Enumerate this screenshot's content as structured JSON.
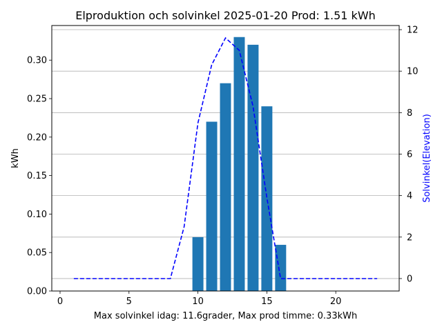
{
  "chart_data": {
    "type": "bar",
    "title": "Elproduktion och solvinkel 2025-01-20 Prod: 1.51 kWh",
    "xlabel": "Max solvinkel idag: 11.6grader, Max prod timme: 0.33kWh",
    "ylabel": "kWh",
    "y2label": "Solvinkel(Elevation)",
    "xlim": [
      -0.6,
      24.6
    ],
    "ylim": [
      0,
      0.345
    ],
    "y2lim": [
      -0.6,
      12.2
    ],
    "xticks": [
      0,
      5,
      10,
      15,
      20
    ],
    "yticks": [
      0.0,
      0.05,
      0.1,
      0.15,
      0.2,
      0.25,
      0.3
    ],
    "ytick_labels": [
      "0.00",
      "0.05",
      "0.10",
      "0.15",
      "0.20",
      "0.25",
      "0.30"
    ],
    "y2ticks": [
      0,
      2,
      4,
      6,
      8,
      10,
      12
    ],
    "grid": "horizontal lines at secondary axis ticks",
    "bars": {
      "name": "kWh",
      "color": "#1f77b4",
      "x": [
        10,
        11,
        12,
        13,
        14,
        15,
        16
      ],
      "values": [
        0.07,
        0.22,
        0.27,
        0.33,
        0.32,
        0.24,
        0.06
      ]
    },
    "line": {
      "name": "Solvinkel",
      "color": "#0000ff",
      "style": "dashed",
      "x": [
        1,
        2,
        3,
        4,
        5,
        6,
        7,
        8,
        9,
        10,
        11,
        12,
        13,
        14,
        15,
        16,
        17,
        18,
        19,
        20,
        21,
        22,
        23
      ],
      "values": [
        0,
        0,
        0,
        0,
        0,
        0,
        0,
        0,
        2.5,
        7.5,
        10.3,
        11.6,
        11.0,
        8.3,
        3.9,
        0,
        0,
        0,
        0,
        0,
        0,
        0,
        0
      ]
    }
  }
}
